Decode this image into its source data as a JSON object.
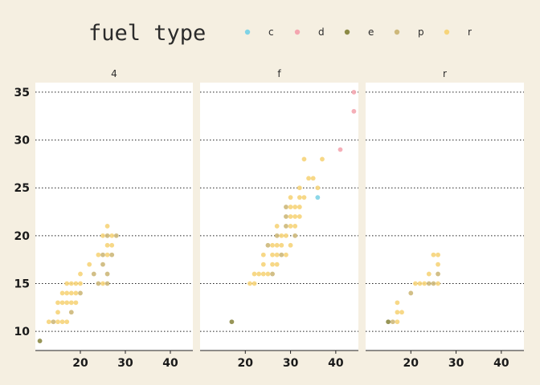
{
  "chart_data": {
    "type": "scatter",
    "legend": {
      "title": "fuel type",
      "position": "top",
      "entries": [
        {
          "label": "c",
          "color": "#7fd3e6"
        },
        {
          "label": "d",
          "color": "#f4a6b0"
        },
        {
          "label": "e",
          "color": "#8c8a45"
        },
        {
          "label": "p",
          "color": "#cdb87a"
        },
        {
          "label": "r",
          "color": "#f6d47a"
        }
      ]
    },
    "facets": [
      "4",
      "f",
      "r"
    ],
    "xlim": [
      10,
      45
    ],
    "ylim": [
      8,
      36
    ],
    "x_ticks": [
      20,
      30,
      40
    ],
    "y_ticks": [
      10,
      15,
      20,
      25,
      30,
      35
    ],
    "y_grid": "dotted",
    "panels": [
      {
        "facet": "4",
        "points": [
          {
            "x": 11,
            "y": 9,
            "fl": "e"
          },
          {
            "x": 13,
            "y": 11,
            "fl": "r"
          },
          {
            "x": 14,
            "y": 11,
            "fl": "p"
          },
          {
            "x": 15,
            "y": 11,
            "fl": "r"
          },
          {
            "x": 16,
            "y": 11,
            "fl": "r"
          },
          {
            "x": 17,
            "y": 11,
            "fl": "r"
          },
          {
            "x": 15,
            "y": 12,
            "fl": "r"
          },
          {
            "x": 18,
            "y": 12,
            "fl": "p"
          },
          {
            "x": 15,
            "y": 13,
            "fl": "r"
          },
          {
            "x": 16,
            "y": 13,
            "fl": "r"
          },
          {
            "x": 17,
            "y": 13,
            "fl": "r"
          },
          {
            "x": 18,
            "y": 13,
            "fl": "r"
          },
          {
            "x": 19,
            "y": 13,
            "fl": "r"
          },
          {
            "x": 16,
            "y": 14,
            "fl": "r"
          },
          {
            "x": 17,
            "y": 14,
            "fl": "r"
          },
          {
            "x": 18,
            "y": 14,
            "fl": "r"
          },
          {
            "x": 19,
            "y": 14,
            "fl": "r"
          },
          {
            "x": 20,
            "y": 14,
            "fl": "p"
          },
          {
            "x": 17,
            "y": 15,
            "fl": "r"
          },
          {
            "x": 18,
            "y": 15,
            "fl": "r"
          },
          {
            "x": 19,
            "y": 15,
            "fl": "r"
          },
          {
            "x": 20,
            "y": 15,
            "fl": "r"
          },
          {
            "x": 24,
            "y": 15,
            "fl": "p"
          },
          {
            "x": 25,
            "y": 15,
            "fl": "r"
          },
          {
            "x": 26,
            "y": 15,
            "fl": "p"
          },
          {
            "x": 20,
            "y": 16,
            "fl": "r"
          },
          {
            "x": 23,
            "y": 16,
            "fl": "p"
          },
          {
            "x": 26,
            "y": 16,
            "fl": "p"
          },
          {
            "x": 22,
            "y": 17,
            "fl": "r"
          },
          {
            "x": 25,
            "y": 17,
            "fl": "p"
          },
          {
            "x": 24,
            "y": 18,
            "fl": "r"
          },
          {
            "x": 25,
            "y": 18,
            "fl": "p"
          },
          {
            "x": 26,
            "y": 18,
            "fl": "r"
          },
          {
            "x": 27,
            "y": 18,
            "fl": "p"
          },
          {
            "x": 26,
            "y": 19,
            "fl": "r"
          },
          {
            "x": 27,
            "y": 19,
            "fl": "r"
          },
          {
            "x": 25,
            "y": 20,
            "fl": "r"
          },
          {
            "x": 26,
            "y": 20,
            "fl": "p"
          },
          {
            "x": 27,
            "y": 20,
            "fl": "r"
          },
          {
            "x": 28,
            "y": 20,
            "fl": "p"
          },
          {
            "x": 26,
            "y": 21,
            "fl": "r"
          }
        ]
      },
      {
        "facet": "f",
        "points": [
          {
            "x": 17,
            "y": 11,
            "fl": "e"
          },
          {
            "x": 21,
            "y": 15,
            "fl": "r"
          },
          {
            "x": 22,
            "y": 15,
            "fl": "r"
          },
          {
            "x": 22,
            "y": 16,
            "fl": "r"
          },
          {
            "x": 23,
            "y": 16,
            "fl": "r"
          },
          {
            "x": 24,
            "y": 16,
            "fl": "r"
          },
          {
            "x": 25,
            "y": 16,
            "fl": "r"
          },
          {
            "x": 26,
            "y": 16,
            "fl": "p"
          },
          {
            "x": 24,
            "y": 17,
            "fl": "r"
          },
          {
            "x": 26,
            "y": 17,
            "fl": "r"
          },
          {
            "x": 27,
            "y": 17,
            "fl": "r"
          },
          {
            "x": 24,
            "y": 18,
            "fl": "r"
          },
          {
            "x": 26,
            "y": 18,
            "fl": "r"
          },
          {
            "x": 27,
            "y": 18,
            "fl": "r"
          },
          {
            "x": 28,
            "y": 18,
            "fl": "p"
          },
          {
            "x": 29,
            "y": 18,
            "fl": "r"
          },
          {
            "x": 25,
            "y": 19,
            "fl": "p"
          },
          {
            "x": 26,
            "y": 19,
            "fl": "r"
          },
          {
            "x": 27,
            "y": 19,
            "fl": "r"
          },
          {
            "x": 28,
            "y": 19,
            "fl": "r"
          },
          {
            "x": 30,
            "y": 19,
            "fl": "r"
          },
          {
            "x": 27,
            "y": 20,
            "fl": "p"
          },
          {
            "x": 28,
            "y": 20,
            "fl": "r"
          },
          {
            "x": 29,
            "y": 20,
            "fl": "r"
          },
          {
            "x": 31,
            "y": 20,
            "fl": "p"
          },
          {
            "x": 27,
            "y": 21,
            "fl": "r"
          },
          {
            "x": 29,
            "y": 21,
            "fl": "p"
          },
          {
            "x": 30,
            "y": 21,
            "fl": "r"
          },
          {
            "x": 31,
            "y": 21,
            "fl": "r"
          },
          {
            "x": 29,
            "y": 22,
            "fl": "p"
          },
          {
            "x": 30,
            "y": 22,
            "fl": "r"
          },
          {
            "x": 31,
            "y": 22,
            "fl": "r"
          },
          {
            "x": 32,
            "y": 22,
            "fl": "r"
          },
          {
            "x": 29,
            "y": 23,
            "fl": "p"
          },
          {
            "x": 30,
            "y": 23,
            "fl": "r"
          },
          {
            "x": 31,
            "y": 23,
            "fl": "r"
          },
          {
            "x": 32,
            "y": 23,
            "fl": "r"
          },
          {
            "x": 30,
            "y": 24,
            "fl": "r"
          },
          {
            "x": 32,
            "y": 24,
            "fl": "r"
          },
          {
            "x": 33,
            "y": 24,
            "fl": "r"
          },
          {
            "x": 36,
            "y": 24,
            "fl": "c"
          },
          {
            "x": 32,
            "y": 25,
            "fl": "r"
          },
          {
            "x": 36,
            "y": 25,
            "fl": "r"
          },
          {
            "x": 34,
            "y": 26,
            "fl": "r"
          },
          {
            "x": 35,
            "y": 26,
            "fl": "r"
          },
          {
            "x": 33,
            "y": 28,
            "fl": "r"
          },
          {
            "x": 37,
            "y": 28,
            "fl": "r"
          },
          {
            "x": 41,
            "y": 29,
            "fl": "d"
          },
          {
            "x": 44,
            "y": 33,
            "fl": "d"
          },
          {
            "x": 44,
            "y": 35,
            "fl": "d"
          }
        ]
      },
      {
        "facet": "r",
        "points": [
          {
            "x": 15,
            "y": 11,
            "fl": "e"
          },
          {
            "x": 16,
            "y": 11,
            "fl": "p"
          },
          {
            "x": 17,
            "y": 11,
            "fl": "r"
          },
          {
            "x": 17,
            "y": 12,
            "fl": "r"
          },
          {
            "x": 18,
            "y": 12,
            "fl": "r"
          },
          {
            "x": 17,
            "y": 13,
            "fl": "r"
          },
          {
            "x": 20,
            "y": 14,
            "fl": "p"
          },
          {
            "x": 21,
            "y": 15,
            "fl": "r"
          },
          {
            "x": 22,
            "y": 15,
            "fl": "r"
          },
          {
            "x": 23,
            "y": 15,
            "fl": "r"
          },
          {
            "x": 24,
            "y": 15,
            "fl": "p"
          },
          {
            "x": 25,
            "y": 15,
            "fl": "p"
          },
          {
            "x": 26,
            "y": 15,
            "fl": "r"
          },
          {
            "x": 24,
            "y": 16,
            "fl": "r"
          },
          {
            "x": 26,
            "y": 16,
            "fl": "p"
          },
          {
            "x": 26,
            "y": 17,
            "fl": "r"
          },
          {
            "x": 25,
            "y": 18,
            "fl": "r"
          },
          {
            "x": 26,
            "y": 18,
            "fl": "r"
          }
        ]
      }
    ]
  }
}
